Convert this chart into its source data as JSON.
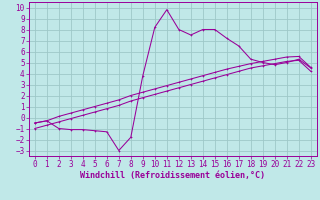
{
  "xlabel": "Windchill (Refroidissement éolien,°C)",
  "bg_color": "#c0e8e8",
  "grid_color": "#9ec8c8",
  "line_color": "#990099",
  "xlim": [
    -0.5,
    23.5
  ],
  "ylim": [
    -3.5,
    10.5
  ],
  "xticks": [
    0,
    1,
    2,
    3,
    4,
    5,
    6,
    7,
    8,
    9,
    10,
    11,
    12,
    13,
    14,
    15,
    16,
    17,
    18,
    19,
    20,
    21,
    22,
    23
  ],
  "yticks": [
    -3,
    -2,
    -1,
    0,
    1,
    2,
    3,
    4,
    5,
    6,
    7,
    8,
    9,
    10
  ],
  "line1_x": [
    0,
    1,
    2,
    3,
    4,
    5,
    6,
    7,
    8,
    9,
    10,
    11,
    12,
    13,
    14,
    15,
    16,
    17,
    18,
    19,
    20,
    21,
    22,
    23
  ],
  "line1_y": [
    -0.5,
    -0.3,
    0.1,
    0.4,
    0.7,
    1.0,
    1.3,
    1.6,
    2.0,
    2.3,
    2.6,
    2.9,
    3.2,
    3.5,
    3.8,
    4.1,
    4.4,
    4.65,
    4.9,
    5.1,
    5.3,
    5.5,
    5.55,
    4.55
  ],
  "line2_x": [
    0,
    1,
    2,
    3,
    4,
    5,
    6,
    7,
    8,
    9,
    10,
    11,
    12,
    13,
    14,
    15,
    16,
    17,
    18,
    19,
    20,
    21,
    22,
    23
  ],
  "line2_y": [
    -1.0,
    -0.7,
    -0.4,
    -0.1,
    0.2,
    0.5,
    0.8,
    1.1,
    1.5,
    1.8,
    2.1,
    2.4,
    2.7,
    3.0,
    3.3,
    3.6,
    3.9,
    4.2,
    4.5,
    4.7,
    4.9,
    5.1,
    5.2,
    4.2
  ],
  "zigzag_x": [
    0,
    1,
    2,
    3,
    4,
    5,
    6,
    7,
    8,
    9,
    10,
    11,
    12,
    13,
    14,
    15,
    16,
    17,
    18,
    19,
    20,
    21,
    22,
    23
  ],
  "zigzag_y": [
    -0.5,
    -0.3,
    -1.0,
    -1.1,
    -1.1,
    -1.2,
    -1.3,
    -3.0,
    -1.8,
    3.8,
    8.2,
    9.8,
    8.0,
    7.5,
    8.0,
    8.0,
    7.2,
    6.5,
    5.3,
    5.0,
    4.8,
    5.0,
    5.3,
    4.5
  ],
  "tick_fontsize": 5.5,
  "xlabel_fontsize": 6.0
}
